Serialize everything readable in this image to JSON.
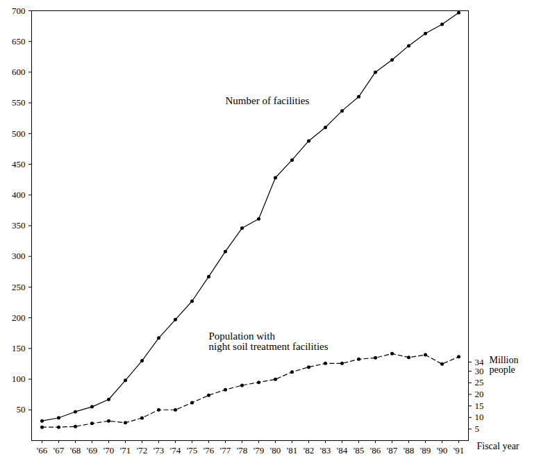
{
  "chart_data": {
    "type": "line",
    "x_label": "Fiscal year",
    "y2_label": "Million people",
    "categories": [
      "'66",
      "'67",
      "'68",
      "'69",
      "'70",
      "'71",
      "'72",
      "'73",
      "'74",
      "'75",
      "'76",
      "'77",
      "'78",
      "'79",
      "'80",
      "'81",
      "'82",
      "'83",
      "'84",
      "'85",
      "'86",
      "'87",
      "'88",
      "'89",
      "'90",
      "'91"
    ],
    "series": [
      {
        "name": "Number of facilities",
        "color": "#000000",
        "marker": "circle",
        "line_style": "solid",
        "values": [
          32,
          37,
          47,
          55,
          67,
          98,
          130,
          167,
          197,
          227,
          267,
          308,
          346,
          361,
          428,
          457,
          488,
          510,
          537,
          560,
          600,
          620,
          643,
          663,
          678,
          697
        ]
      },
      {
        "name": "Population with\nnight soil treatment facilities",
        "color": "#000000",
        "marker": "circle",
        "line_style": "dashed",
        "axis": "y2",
        "values": [
          5.8,
          5.8,
          6.1,
          7.4,
          8.5,
          7.7,
          9.8,
          13.3,
          13.3,
          16.4,
          19.6,
          22.0,
          23.9,
          25.2,
          26.5,
          29.7,
          31.8,
          33.4,
          33.4,
          35.2,
          35.8,
          37.6,
          36.0,
          37.1,
          33.1,
          36.3
        ]
      }
    ],
    "ylim": [
      0,
      700
    ],
    "yticks": [
      50,
      100,
      150,
      200,
      250,
      300,
      350,
      400,
      450,
      500,
      550,
      600,
      650,
      700
    ],
    "y2lim": [
      0,
      186
    ],
    "y2ticks": [
      5,
      10,
      15,
      20,
      25,
      30,
      34
    ],
    "grid": false
  }
}
